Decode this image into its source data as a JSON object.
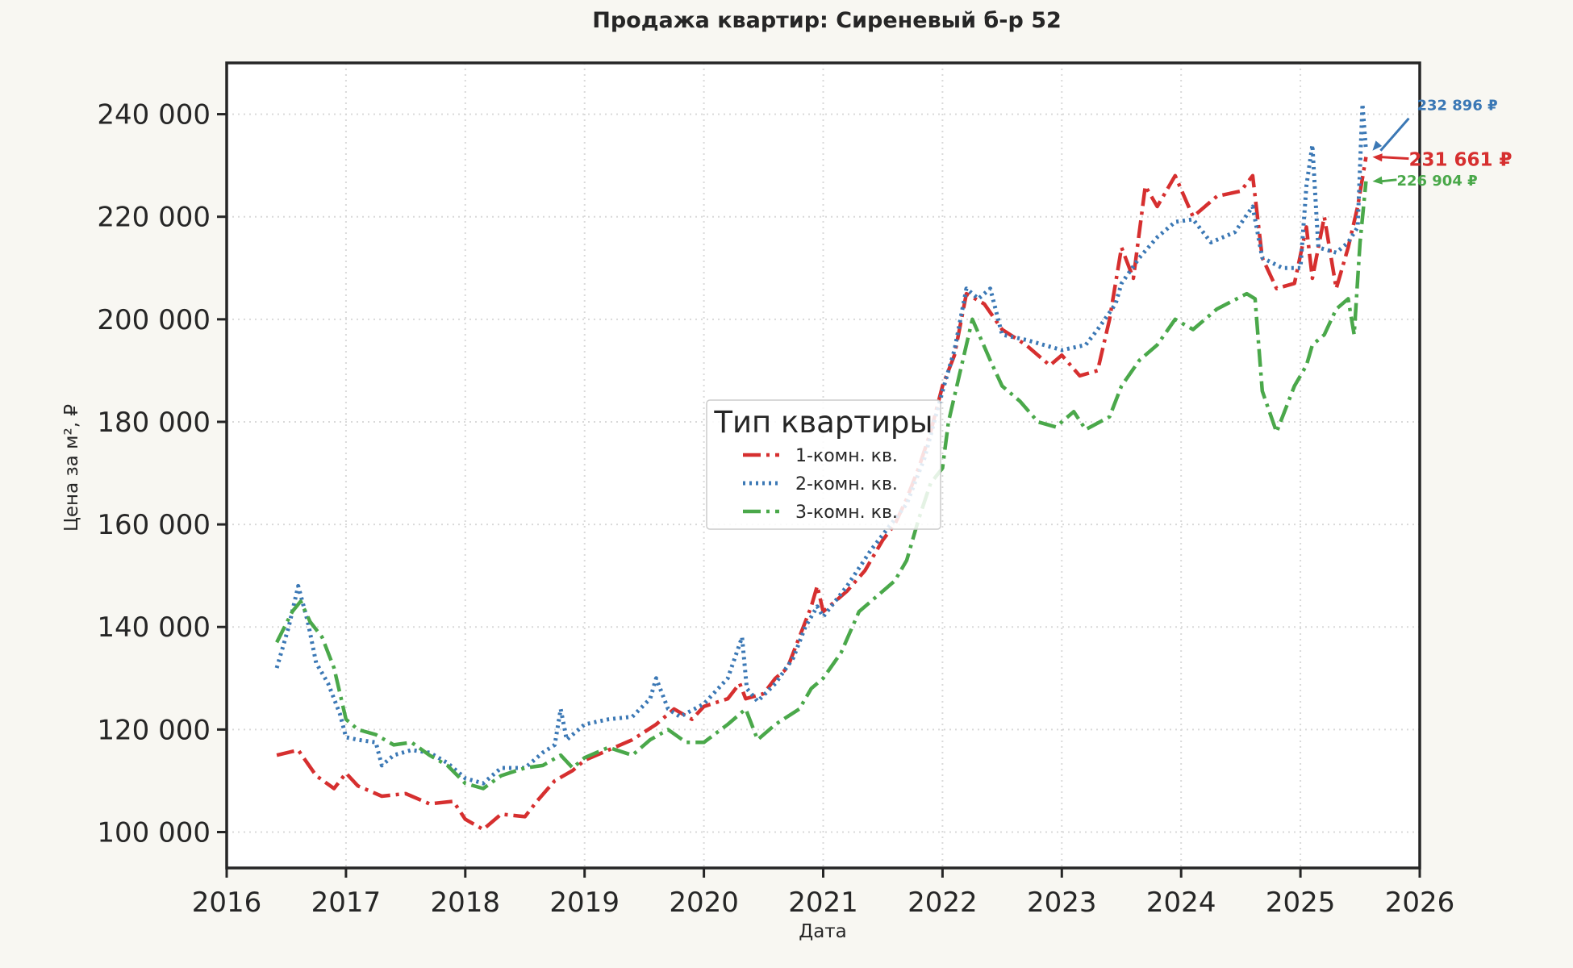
{
  "chart_data": {
    "type": "line",
    "title": "Продажа квартир: Сиреневый б-р 52",
    "xlabel": "Дата",
    "ylabel": "Цена за м², ₽",
    "xlim": [
      2016,
      2026
    ],
    "ylim": [
      93000,
      250000
    ],
    "x_ticks": [
      2016,
      2017,
      2018,
      2019,
      2020,
      2021,
      2022,
      2023,
      2024,
      2025,
      2026
    ],
    "x_tick_labels": [
      "2016",
      "2017",
      "2018",
      "2019",
      "2020",
      "2021",
      "2022",
      "2023",
      "2024",
      "2025",
      "2026"
    ],
    "y_ticks": [
      100000,
      120000,
      140000,
      160000,
      180000,
      200000,
      220000,
      240000
    ],
    "y_tick_labels": [
      "100 000",
      "120 000",
      "140 000",
      "160 000",
      "180 000",
      "200 000",
      "220 000",
      "240 000"
    ],
    "grid": true,
    "legend": {
      "title": "Тип квартиры",
      "position": "center"
    },
    "series": [
      {
        "name": "1-комн. кв.",
        "color": "#d62f2f",
        "dash": "dashdot",
        "points": [
          [
            2016.42,
            115000
          ],
          [
            2016.6,
            116000
          ],
          [
            2016.75,
            111000
          ],
          [
            2016.9,
            108500
          ],
          [
            2017.0,
            111500
          ],
          [
            2017.1,
            109000
          ],
          [
            2017.3,
            107000
          ],
          [
            2017.5,
            107500
          ],
          [
            2017.7,
            105500
          ],
          [
            2017.9,
            106000
          ],
          [
            2018.0,
            102500
          ],
          [
            2018.15,
            100500
          ],
          [
            2018.3,
            103500
          ],
          [
            2018.5,
            103000
          ],
          [
            2018.6,
            106000
          ],
          [
            2018.75,
            110000
          ],
          [
            2018.9,
            112000
          ],
          [
            2019.0,
            114000
          ],
          [
            2019.2,
            116000
          ],
          [
            2019.4,
            118000
          ],
          [
            2019.6,
            121000
          ],
          [
            2019.75,
            124000
          ],
          [
            2019.9,
            122000
          ],
          [
            2020.0,
            124500
          ],
          [
            2020.2,
            126000
          ],
          [
            2020.3,
            129000
          ],
          [
            2020.35,
            126000
          ],
          [
            2020.5,
            127000
          ],
          [
            2020.6,
            130000
          ],
          [
            2020.7,
            132000
          ],
          [
            2020.8,
            138000
          ],
          [
            2020.9,
            144000
          ],
          [
            2020.95,
            148000
          ],
          [
            2021.0,
            143000
          ],
          [
            2021.1,
            145000
          ],
          [
            2021.2,
            147000
          ],
          [
            2021.35,
            151000
          ],
          [
            2021.5,
            157000
          ],
          [
            2021.6,
            160000
          ],
          [
            2021.7,
            165000
          ],
          [
            2021.8,
            171000
          ],
          [
            2021.9,
            178000
          ],
          [
            2022.0,
            187000
          ],
          [
            2022.1,
            193000
          ],
          [
            2022.2,
            205000
          ],
          [
            2022.35,
            203000
          ],
          [
            2022.5,
            198000
          ],
          [
            2022.7,
            195000
          ],
          [
            2022.9,
            191000
          ],
          [
            2023.0,
            193000
          ],
          [
            2023.15,
            189000
          ],
          [
            2023.3,
            190000
          ],
          [
            2023.4,
            200000
          ],
          [
            2023.5,
            214000
          ],
          [
            2023.6,
            208000
          ],
          [
            2023.7,
            226000
          ],
          [
            2023.8,
            222000
          ],
          [
            2023.95,
            228000
          ],
          [
            2024.1,
            220000
          ],
          [
            2024.3,
            224000
          ],
          [
            2024.5,
            225000
          ],
          [
            2024.6,
            228000
          ],
          [
            2024.68,
            212000
          ],
          [
            2024.8,
            206000
          ],
          [
            2024.95,
            207000
          ],
          [
            2025.05,
            218000
          ],
          [
            2025.1,
            208000
          ],
          [
            2025.2,
            220000
          ],
          [
            2025.3,
            206000
          ],
          [
            2025.4,
            214000
          ],
          [
            2025.48,
            222000
          ],
          [
            2025.55,
            231661
          ]
        ]
      },
      {
        "name": "2-комн. кв.",
        "color": "#3b78b5",
        "dash": "dot",
        "points": [
          [
            2016.42,
            132000
          ],
          [
            2016.52,
            140000
          ],
          [
            2016.6,
            148000
          ],
          [
            2016.68,
            141000
          ],
          [
            2016.75,
            133000
          ],
          [
            2016.85,
            129000
          ],
          [
            2016.95,
            123000
          ],
          [
            2017.0,
            118500
          ],
          [
            2017.1,
            118000
          ],
          [
            2017.25,
            117500
          ],
          [
            2017.3,
            113000
          ],
          [
            2017.4,
            115000
          ],
          [
            2017.55,
            116000
          ],
          [
            2017.7,
            115500
          ],
          [
            2017.85,
            113500
          ],
          [
            2018.0,
            110500
          ],
          [
            2018.15,
            109500
          ],
          [
            2018.3,
            112500
          ],
          [
            2018.5,
            112500
          ],
          [
            2018.65,
            115500
          ],
          [
            2018.75,
            117000
          ],
          [
            2018.8,
            124000
          ],
          [
            2018.85,
            118000
          ],
          [
            2019.0,
            121000
          ],
          [
            2019.2,
            122000
          ],
          [
            2019.4,
            122500
          ],
          [
            2019.55,
            126000
          ],
          [
            2019.6,
            130000
          ],
          [
            2019.7,
            124000
          ],
          [
            2019.8,
            122500
          ],
          [
            2020.0,
            125000
          ],
          [
            2020.2,
            130000
          ],
          [
            2020.32,
            138000
          ],
          [
            2020.36,
            128000
          ],
          [
            2020.45,
            125500
          ],
          [
            2020.6,
            129000
          ],
          [
            2020.75,
            134000
          ],
          [
            2020.85,
            140000
          ],
          [
            2020.95,
            144000
          ],
          [
            2021.0,
            142000
          ],
          [
            2021.2,
            148000
          ],
          [
            2021.4,
            155000
          ],
          [
            2021.6,
            161000
          ],
          [
            2021.7,
            164000
          ],
          [
            2021.85,
            173000
          ],
          [
            2022.0,
            186000
          ],
          [
            2022.1,
            194000
          ],
          [
            2022.2,
            206000
          ],
          [
            2022.3,
            204000
          ],
          [
            2022.4,
            206000
          ],
          [
            2022.5,
            197000
          ],
          [
            2022.7,
            196000
          ],
          [
            2022.85,
            195000
          ],
          [
            2023.0,
            194000
          ],
          [
            2023.2,
            195000
          ],
          [
            2023.3,
            198000
          ],
          [
            2023.45,
            203000
          ],
          [
            2023.5,
            207000
          ],
          [
            2023.65,
            212000
          ],
          [
            2023.8,
            216000
          ],
          [
            2023.95,
            219000
          ],
          [
            2024.1,
            219500
          ],
          [
            2024.25,
            215000
          ],
          [
            2024.45,
            217000
          ],
          [
            2024.6,
            222000
          ],
          [
            2024.68,
            212000
          ],
          [
            2024.85,
            210000
          ],
          [
            2025.0,
            210000
          ],
          [
            2025.05,
            226000
          ],
          [
            2025.1,
            234000
          ],
          [
            2025.15,
            214000
          ],
          [
            2025.3,
            213000
          ],
          [
            2025.4,
            215000
          ],
          [
            2025.48,
            218000
          ],
          [
            2025.52,
            242000
          ],
          [
            2025.55,
            232896
          ]
        ]
      },
      {
        "name": "3-комн. кв.",
        "color": "#4aa84a",
        "dash": "dashdot",
        "points": [
          [
            2016.42,
            137000
          ],
          [
            2016.55,
            143000
          ],
          [
            2016.62,
            145000
          ],
          [
            2016.7,
            141000
          ],
          [
            2016.8,
            138000
          ],
          [
            2016.9,
            132000
          ],
          [
            2017.0,
            122000
          ],
          [
            2017.1,
            120000
          ],
          [
            2017.25,
            119000
          ],
          [
            2017.4,
            117000
          ],
          [
            2017.55,
            117500
          ],
          [
            2017.7,
            115000
          ],
          [
            2017.85,
            113000
          ],
          [
            2018.0,
            109500
          ],
          [
            2018.15,
            108500
          ],
          [
            2018.3,
            111000
          ],
          [
            2018.5,
            112500
          ],
          [
            2018.65,
            113000
          ],
          [
            2018.8,
            115000
          ],
          [
            2018.9,
            112500
          ],
          [
            2019.0,
            114500
          ],
          [
            2019.2,
            116500
          ],
          [
            2019.4,
            115000
          ],
          [
            2019.55,
            118000
          ],
          [
            2019.7,
            120000
          ],
          [
            2019.85,
            117500
          ],
          [
            2020.0,
            117500
          ],
          [
            2020.2,
            121000
          ],
          [
            2020.35,
            124000
          ],
          [
            2020.45,
            118000
          ],
          [
            2020.6,
            121000
          ],
          [
            2020.8,
            124000
          ],
          [
            2020.9,
            128000
          ],
          [
            2021.0,
            130000
          ],
          [
            2021.15,
            135000
          ],
          [
            2021.3,
            143000
          ],
          [
            2021.45,
            146000
          ],
          [
            2021.6,
            149000
          ],
          [
            2021.7,
            153000
          ],
          [
            2021.8,
            161000
          ],
          [
            2021.9,
            168000
          ],
          [
            2022.0,
            171000
          ],
          [
            2022.05,
            180000
          ],
          [
            2022.15,
            190000
          ],
          [
            2022.25,
            200000
          ],
          [
            2022.4,
            192000
          ],
          [
            2022.5,
            187000
          ],
          [
            2022.65,
            184000
          ],
          [
            2022.8,
            180000
          ],
          [
            2022.95,
            179000
          ],
          [
            2023.1,
            182000
          ],
          [
            2023.2,
            178500
          ],
          [
            2023.4,
            181000
          ],
          [
            2023.5,
            187000
          ],
          [
            2023.65,
            192000
          ],
          [
            2023.8,
            195000
          ],
          [
            2023.95,
            200000
          ],
          [
            2024.1,
            198000
          ],
          [
            2024.3,
            202000
          ],
          [
            2024.55,
            205000
          ],
          [
            2024.62,
            204000
          ],
          [
            2024.68,
            186000
          ],
          [
            2024.8,
            178000
          ],
          [
            2024.95,
            187000
          ],
          [
            2025.05,
            191000
          ],
          [
            2025.1,
            195000
          ],
          [
            2025.2,
            197000
          ],
          [
            2025.3,
            202000
          ],
          [
            2025.4,
            204000
          ],
          [
            2025.45,
            197000
          ],
          [
            2025.5,
            215000
          ],
          [
            2025.55,
            226904
          ]
        ]
      }
    ],
    "annotations": [
      {
        "series": "2-комн. кв.",
        "text": "232 896 ₽",
        "x": 2025.55,
        "y": 232896,
        "color": "#3b78b5",
        "placement": "upper-right"
      },
      {
        "series": "1-комн. кв.",
        "text": "231 661 ₽",
        "x": 2025.55,
        "y": 231661,
        "color": "#d62f2f",
        "placement": "right"
      },
      {
        "series": "3-комн. кв.",
        "text": "226 904 ₽",
        "x": 2025.55,
        "y": 226904,
        "color": "#4aa84a",
        "placement": "lower-right"
      }
    ]
  }
}
